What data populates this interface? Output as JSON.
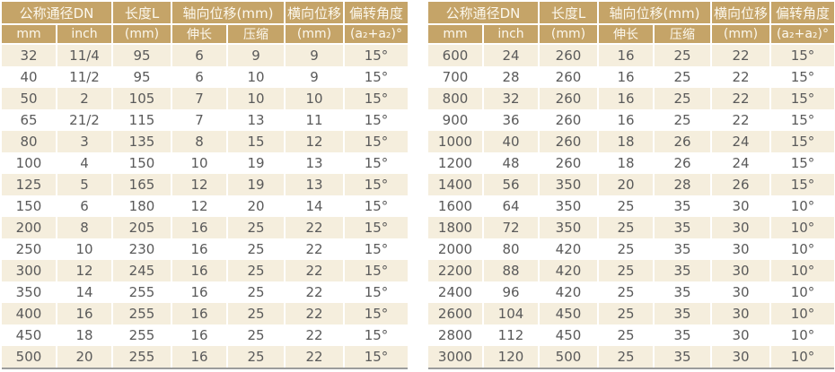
{
  "colors": {
    "header_bg": "#c5a468",
    "header_text": "#fcf8ee",
    "stripe_bg": "#f5eedd",
    "row_bg": "#ffffff",
    "cell_text": "#5a5a5a",
    "bottom_border": "#9c9c9c"
  },
  "header": {
    "dn": "公称通径DN",
    "dn_unit_mm": "mm",
    "dn_unit_inch": "inch",
    "length": "长度L",
    "length_unit": "(mm)",
    "axial": "轴向位移(mm)",
    "axial_extend": "伸长",
    "axial_compress": "压缩",
    "lateral": "横向位移",
    "lateral_unit": "(mm)",
    "angle": "偏转角度",
    "angle_unit": "(a₂+a₂)°"
  },
  "tables": [
    {
      "name": "dn-32-500",
      "rows": [
        [
          "32",
          "11/4",
          "95",
          "6",
          "9",
          "9",
          "15°"
        ],
        [
          "40",
          "11/2",
          "95",
          "6",
          "10",
          "9",
          "15°"
        ],
        [
          "50",
          "2",
          "105",
          "7",
          "10",
          "10",
          "15°"
        ],
        [
          "65",
          "21/2",
          "115",
          "7",
          "13",
          "11",
          "15°"
        ],
        [
          "80",
          "3",
          "135",
          "8",
          "15",
          "12",
          "15°"
        ],
        [
          "100",
          "4",
          "150",
          "10",
          "19",
          "13",
          "15°"
        ],
        [
          "125",
          "5",
          "165",
          "12",
          "19",
          "13",
          "15°"
        ],
        [
          "150",
          "6",
          "180",
          "12",
          "20",
          "14",
          "15°"
        ],
        [
          "200",
          "8",
          "205",
          "16",
          "25",
          "22",
          "15°"
        ],
        [
          "250",
          "10",
          "230",
          "16",
          "25",
          "22",
          "15°"
        ],
        [
          "300",
          "12",
          "245",
          "16",
          "25",
          "22",
          "15°"
        ],
        [
          "350",
          "14",
          "255",
          "16",
          "25",
          "22",
          "15°"
        ],
        [
          "400",
          "16",
          "255",
          "16",
          "25",
          "22",
          "15°"
        ],
        [
          "450",
          "18",
          "255",
          "16",
          "25",
          "22",
          "15°"
        ],
        [
          "500",
          "20",
          "255",
          "16",
          "25",
          "22",
          "15°"
        ]
      ]
    },
    {
      "name": "dn-600-3000",
      "rows": [
        [
          "600",
          "24",
          "260",
          "16",
          "25",
          "22",
          "15°"
        ],
        [
          "700",
          "28",
          "260",
          "16",
          "25",
          "22",
          "15°"
        ],
        [
          "800",
          "32",
          "260",
          "16",
          "25",
          "22",
          "15°"
        ],
        [
          "900",
          "36",
          "260",
          "16",
          "25",
          "22",
          "15°"
        ],
        [
          "1000",
          "40",
          "260",
          "18",
          "26",
          "24",
          "15°"
        ],
        [
          "1200",
          "48",
          "260",
          "18",
          "26",
          "24",
          "15°"
        ],
        [
          "1400",
          "56",
          "350",
          "20",
          "28",
          "26",
          "15°"
        ],
        [
          "1600",
          "64",
          "350",
          "25",
          "35",
          "30",
          "10°"
        ],
        [
          "1800",
          "72",
          "350",
          "25",
          "35",
          "30",
          "10°"
        ],
        [
          "2000",
          "80",
          "420",
          "25",
          "35",
          "30",
          "10°"
        ],
        [
          "2200",
          "88",
          "420",
          "25",
          "35",
          "30",
          "10°"
        ],
        [
          "2400",
          "96",
          "420",
          "25",
          "35",
          "30",
          "10°"
        ],
        [
          "2600",
          "104",
          "450",
          "25",
          "35",
          "30",
          "10°"
        ],
        [
          "2800",
          "112",
          "450",
          "25",
          "35",
          "30",
          "10°"
        ],
        [
          "3000",
          "120",
          "500",
          "25",
          "35",
          "30",
          "10°"
        ]
      ]
    }
  ]
}
